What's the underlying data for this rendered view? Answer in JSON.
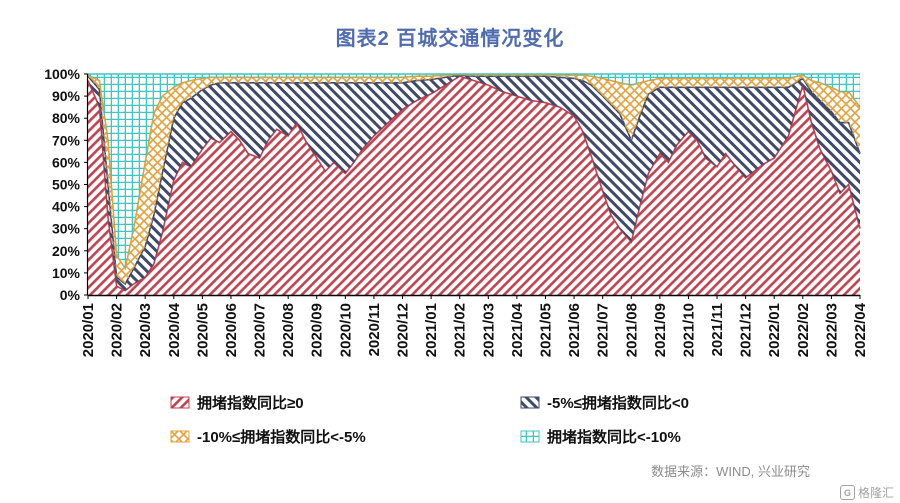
{
  "title": "图表2 百城交通情况变化",
  "source": "数据来源：WIND, 兴业研究",
  "logo_text": "格隆汇",
  "colors": {
    "title": "#4f6cb0",
    "red": "#c0404e",
    "navy": "#3f4a6b",
    "orange": "#e4a13c",
    "cyan": "#3ec6c0",
    "axis": "#000000",
    "source_text": "#8c8c8c"
  },
  "legend": [
    {
      "label": "拥堵指数同比≥0",
      "pattern": "red"
    },
    {
      "label": "-5%≤拥堵指数同比<0",
      "pattern": "navy"
    },
    {
      "label": "-10%≤拥堵指数同比<-5%",
      "pattern": "orange"
    },
    {
      "label": "拥堵指数同比<-10%",
      "pattern": "cyan"
    }
  ],
  "chart_data": {
    "type": "area",
    "stacked": true,
    "percent": true,
    "title": "图表2 百城交通情况变化",
    "ylim": [
      0,
      100
    ],
    "y_tick_labels": [
      "0%",
      "10%",
      "20%",
      "30%",
      "40%",
      "50%",
      "60%",
      "70%",
      "80%",
      "90%",
      "100%"
    ],
    "x_tick_labels": [
      "2020/01",
      "2020/02",
      "2020/03",
      "2020/04",
      "2020/05",
      "2020/06",
      "2020/07",
      "2020/08",
      "2020/09",
      "2020/10",
      "2020/11",
      "2020/12",
      "2021/01",
      "2021/02",
      "2021/03",
      "2021/04",
      "2021/05",
      "2021/06",
      "2021/07",
      "2021/08",
      "2021/09",
      "2021/10",
      "2021/11",
      "2021/12",
      "2022/01",
      "2022/02",
      "2022/03",
      "2022/04"
    ],
    "x_unit": "month-index (0 = 2020/01, 27 = 2022/04)",
    "legend_position": "bottom",
    "grid": false,
    "x": [
      0,
      0.4,
      0.7,
      1,
      1.3,
      1.6,
      2,
      2.3,
      2.6,
      3,
      3.3,
      3.6,
      4,
      4.3,
      4.6,
      5,
      5.3,
      5.6,
      6,
      6.3,
      6.6,
      7,
      7.3,
      7.6,
      8,
      8.3,
      8.6,
      9,
      9.3,
      9.6,
      10,
      10.5,
      11,
      11.5,
      12,
      12.5,
      13,
      13.5,
      14,
      14.5,
      15,
      15.5,
      16,
      16.5,
      17,
      17.3,
      17.6,
      18,
      18.3,
      18.6,
      19,
      19.3,
      19.6,
      20,
      20.3,
      20.6,
      21,
      21.3,
      21.6,
      22,
      22.3,
      22.6,
      23,
      23.3,
      23.6,
      24,
      24.5,
      25,
      25.3,
      25.6,
      26,
      26.3,
      26.6,
      27
    ],
    "series": [
      {
        "name": "拥堵指数同比≥0",
        "pattern": "red",
        "color": "#c0404e",
        "values": [
          97,
          85,
          35,
          4,
          2,
          5,
          8,
          14,
          28,
          52,
          60,
          58,
          66,
          71,
          69,
          74,
          70,
          64,
          62,
          70,
          75,
          72,
          78,
          70,
          62,
          56,
          60,
          55,
          60,
          66,
          72,
          78,
          84,
          88,
          91,
          95,
          99,
          97,
          95,
          92,
          90,
          88,
          87,
          85,
          81,
          74,
          63,
          47,
          36,
          30,
          24,
          40,
          55,
          64,
          60,
          68,
          74,
          70,
          62,
          58,
          64,
          59,
          53,
          56,
          59,
          62,
          72,
          95,
          78,
          66,
          56,
          46,
          50,
          30
        ]
      },
      {
        "name": "-5%≤拥堵指数同比<0",
        "pattern": "navy",
        "color": "#3f4a6b",
        "values": [
          2,
          8,
          15,
          4,
          3,
          7,
          14,
          22,
          27,
          28,
          27,
          31,
          27,
          24,
          27,
          22,
          26,
          32,
          34,
          26,
          21,
          24,
          18,
          26,
          34,
          40,
          36,
          41,
          36,
          30,
          24,
          18,
          12,
          9,
          6.5,
          3.5,
          0.5,
          2,
          4,
          7,
          9,
          11,
          12,
          13.5,
          17,
          23,
          32,
          43,
          50,
          52,
          46,
          41,
          36,
          30,
          34,
          26,
          20,
          24,
          32,
          36,
          30,
          35,
          41,
          38,
          35,
          32,
          22,
          3,
          14,
          22,
          27,
          32,
          28,
          34
        ]
      },
      {
        "name": "-10%≤拥堵指数同比<-5%",
        "pattern": "orange",
        "color": "#e4a13c",
        "values": [
          0.5,
          4,
          20,
          10,
          7,
          18,
          38,
          46,
          35,
          14,
          9,
          8,
          5,
          3.5,
          2.5,
          2.5,
          2.5,
          2.5,
          2.5,
          2.5,
          2.5,
          2.5,
          2.5,
          2.5,
          2.5,
          2.5,
          2.5,
          2.5,
          2.5,
          2.5,
          2.5,
          2.5,
          2.5,
          2,
          1.5,
          1,
          0.3,
          0.6,
          0.6,
          0.6,
          0.6,
          0.6,
          0.6,
          1,
          1.5,
          2.5,
          4,
          8,
          11,
          14,
          25,
          15,
          6,
          4,
          4,
          4,
          4,
          4,
          4,
          4,
          4,
          4,
          4,
          4,
          4,
          4,
          4,
          1.5,
          5,
          8,
          11,
          14,
          14,
          21
        ]
      },
      {
        "name": "拥堵指数同比<-10%",
        "pattern": "cyan",
        "color": "#3ec6c0",
        "values": [
          0.5,
          3,
          30,
          82,
          88,
          70,
          40,
          18,
          10,
          6,
          4,
          3,
          2,
          1.5,
          1.5,
          1.5,
          1.5,
          1.5,
          1.5,
          1.5,
          1.5,
          1.5,
          1.5,
          1.5,
          1.5,
          1.5,
          1.5,
          1.5,
          1.5,
          1.5,
          1.5,
          1.5,
          1.5,
          1,
          1,
          0.5,
          0.2,
          0.4,
          0.4,
          0.4,
          0.4,
          0.4,
          0.4,
          0.5,
          0.5,
          0.5,
          1,
          2,
          3,
          4,
          5,
          4,
          3,
          2,
          2,
          2,
          2,
          2,
          2,
          2,
          2,
          2,
          2,
          2,
          2,
          2,
          2,
          0.5,
          3,
          4,
          6,
          8,
          8,
          15
        ]
      }
    ]
  }
}
